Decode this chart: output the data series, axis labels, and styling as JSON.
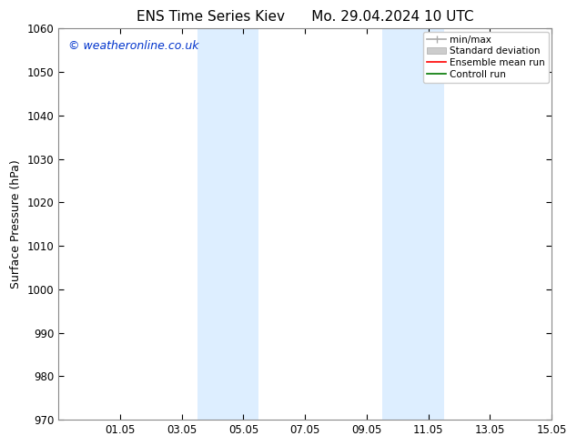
{
  "title1": "ENS Time Series Kiev",
  "title2": "Mo. 29.04.2024 10 UTC",
  "ylabel": "Surface Pressure (hPa)",
  "ylim": [
    970,
    1060
  ],
  "yticks": [
    970,
    980,
    990,
    1000,
    1010,
    1020,
    1030,
    1040,
    1050,
    1060
  ],
  "xlim": [
    0,
    16
  ],
  "xtick_positions": [
    2,
    4,
    6,
    8,
    10,
    12,
    14,
    16
  ],
  "xtick_labels": [
    "01.05",
    "03.05",
    "05.05",
    "07.05",
    "09.05",
    "11.05",
    "13.05",
    "15.05"
  ],
  "shaded_bands": [
    {
      "x_start": 4.5,
      "x_end": 6.5
    },
    {
      "x_start": 10.5,
      "x_end": 12.5
    }
  ],
  "shaded_color": "#ddeeff",
  "background_color": "#ffffff",
  "watermark_text": "© weatheronline.co.uk",
  "watermark_color": "#0033cc",
  "legend_items": [
    {
      "label": "min/max",
      "color": "#aaaaaa",
      "lw": 1.2
    },
    {
      "label": "Standard deviation",
      "color": "#cccccc",
      "lw": 5
    },
    {
      "label": "Ensemble mean run",
      "color": "#ff0000",
      "lw": 1.2
    },
    {
      "label": "Controll run",
      "color": "#007700",
      "lw": 1.2
    }
  ],
  "title_fontsize": 11,
  "axis_fontsize": 9,
  "tick_fontsize": 8.5,
  "watermark_fontsize": 9
}
